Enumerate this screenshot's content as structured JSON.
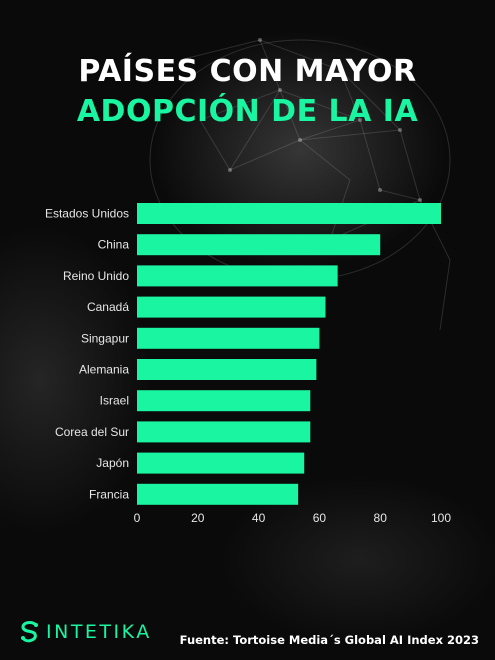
{
  "header": {
    "title_line1": "PAÍSES CON MAYOR",
    "title_line2": "ADOPCIÓN DE LA IA"
  },
  "chart_data": {
    "type": "bar",
    "orientation": "horizontal",
    "categories": [
      "Estados Unidos",
      "China",
      "Reino Unido",
      "Canadá",
      "Singapur",
      "Alemania",
      "Israel",
      "Corea del Sur",
      "Japón",
      "Francia"
    ],
    "values": [
      100,
      80,
      66,
      62,
      60,
      59,
      57,
      57,
      55,
      53
    ],
    "xlim": [
      0,
      100
    ],
    "xticks": [
      0,
      20,
      40,
      60,
      80,
      100
    ],
    "grid": false,
    "bar_color": "#19f5a0"
  },
  "footer": {
    "brand": "INTETIKA",
    "brand_icon": "sintetika-logo-icon",
    "source": "Fuente: Tortoise Media´s Global AI Index 2023"
  },
  "colors": {
    "accent": "#19f5a0",
    "background": "#0b0b0b",
    "text": "#ffffff"
  }
}
